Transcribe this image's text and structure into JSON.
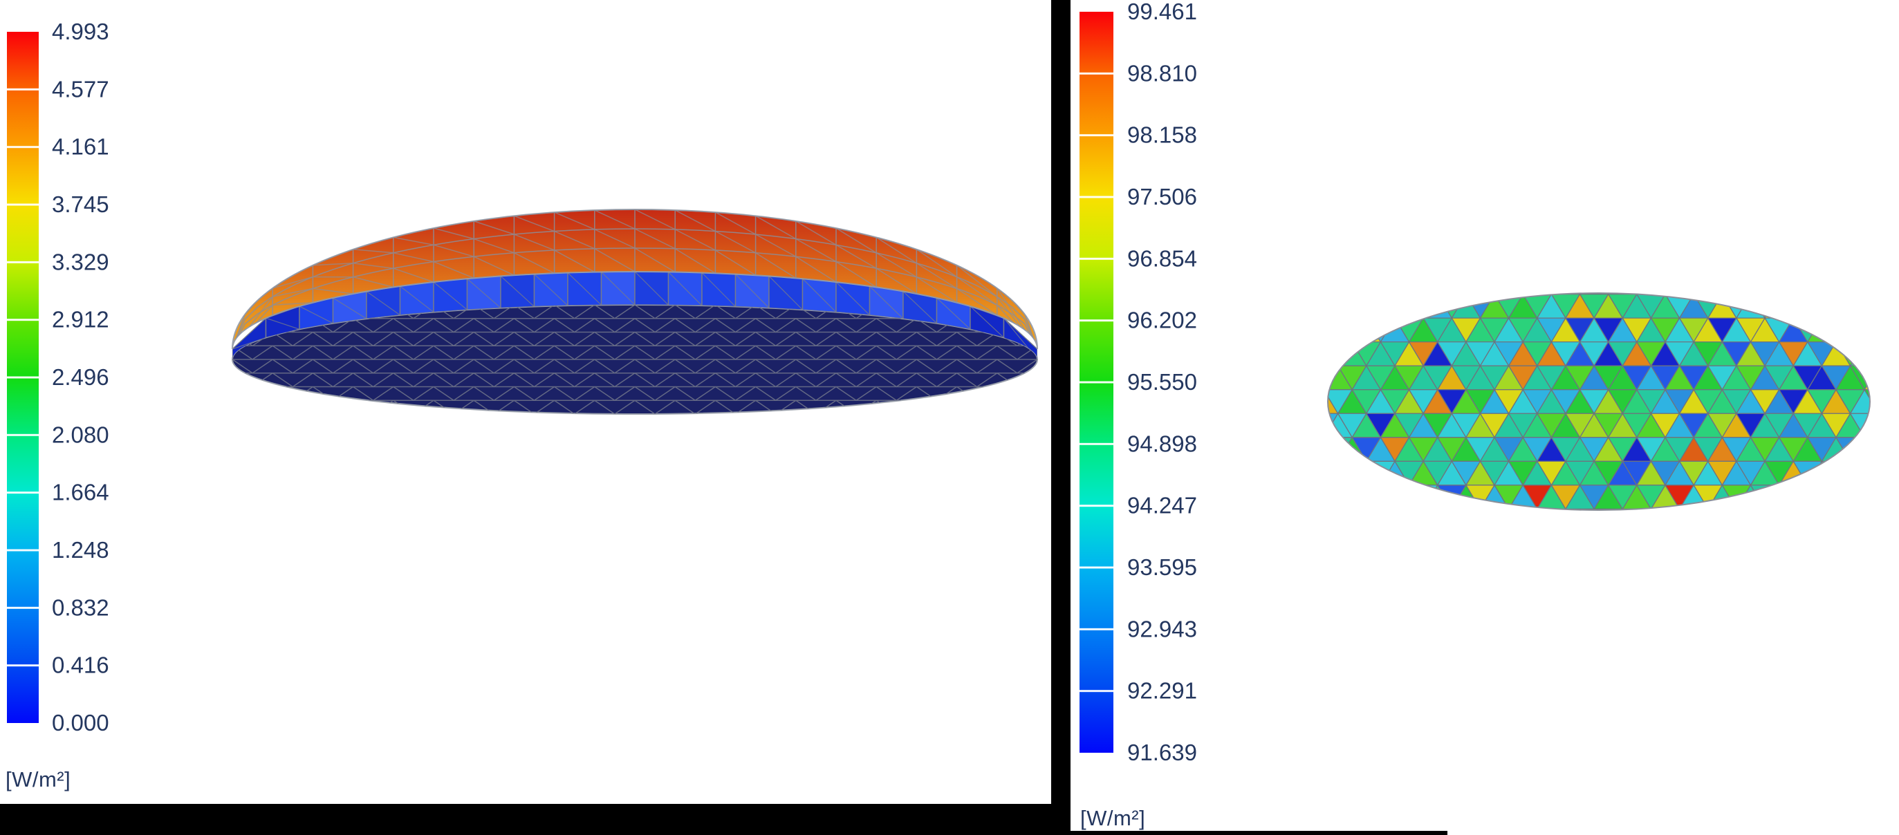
{
  "left_panel": {
    "legend": {
      "ticks": [
        "4.993",
        "4.577",
        "4.161",
        "3.745",
        "3.329",
        "2.912",
        "2.496",
        "2.080",
        "1.664",
        "1.248",
        "0.832",
        "0.416",
        "0.000"
      ],
      "unit": "[W/m²]"
    },
    "figure": "dome-surface-side-view"
  },
  "right_panel": {
    "legend": {
      "ticks": [
        "99.461",
        "98.810",
        "98.158",
        "97.506",
        "96.854",
        "96.202",
        "95.550",
        "94.898",
        "94.247",
        "93.595",
        "92.943",
        "92.291",
        "91.639"
      ],
      "unit": "[W/m²]"
    },
    "figure": "disc-triangular-mesh-top-view"
  },
  "chart_data": [
    {
      "type": "heatmap",
      "title": "",
      "geometry": "plano-convex dome mesh, side view",
      "legend_ticks": [
        4.993,
        4.577,
        4.161,
        3.745,
        3.329,
        2.912,
        2.496,
        2.08,
        1.664,
        1.248,
        0.832,
        0.416,
        0.0
      ],
      "unit": "[W/m²]",
      "range": [
        0.0,
        4.993
      ],
      "legend_position": "left",
      "surface_regions": [
        {
          "name": "top-cap",
          "value_band": "4.0-5.0",
          "colors": [
            "#c62a14",
            "#d85c17",
            "#e8901c",
            "#eda321"
          ]
        },
        {
          "name": "rim-band",
          "value_band": "1.0-1.5",
          "colors": [
            "#1026c8",
            "#2145ee",
            "#3358f2"
          ]
        },
        {
          "name": "bottom-face",
          "value_band": "0.0-0.4",
          "colors": [
            "#1b2166",
            "#232b72"
          ]
        }
      ]
    },
    {
      "type": "heatmap",
      "title": "",
      "geometry": "flat elliptical disc triangular mesh, tilted top view",
      "legend_ticks": [
        99.461,
        98.81,
        98.158,
        97.506,
        96.854,
        96.202,
        95.55,
        94.898,
        94.247,
        93.595,
        92.943,
        92.291,
        91.639
      ],
      "unit": "[W/m²]",
      "range": [
        91.639,
        99.461
      ],
      "legend_position": "left",
      "dominant_value_band": "94.5-96.5 (teal/green triangles with scattered yellow, blue, orange, red)"
    }
  ],
  "style": {
    "tick_color": "#24375f",
    "scale_stops": [
      "#fb0009",
      "#fa6400",
      "#fba000",
      "#f8e000",
      "#c8ee00",
      "#64e400",
      "#12dc12",
      "#00e87e",
      "#00e8d0",
      "#00b4f0",
      "#0080f4",
      "#0048f2",
      "#0008fa"
    ],
    "mesh_line_color": "#757a88",
    "disc_palette": [
      {
        "c": "#26c9a0",
        "w": 20
      },
      {
        "c": "#2bd27b",
        "w": 16
      },
      {
        "c": "#27cc3a",
        "w": 14
      },
      {
        "c": "#52d62b",
        "w": 6
      },
      {
        "c": "#32cfd8",
        "w": 13
      },
      {
        "c": "#2fb3e2",
        "w": 8
      },
      {
        "c": "#2b8fdd",
        "w": 6
      },
      {
        "c": "#2458e6",
        "w": 4
      },
      {
        "c": "#1523cd",
        "w": 2
      },
      {
        "c": "#a4d824",
        "w": 7
      },
      {
        "c": "#dcd816",
        "w": 6
      },
      {
        "c": "#e3b213",
        "w": 1.5
      },
      {
        "c": "#e2851a",
        "w": 1.5
      },
      {
        "c": "#e0250f",
        "w": 0.4
      }
    ],
    "mesh_seed": 7
  }
}
